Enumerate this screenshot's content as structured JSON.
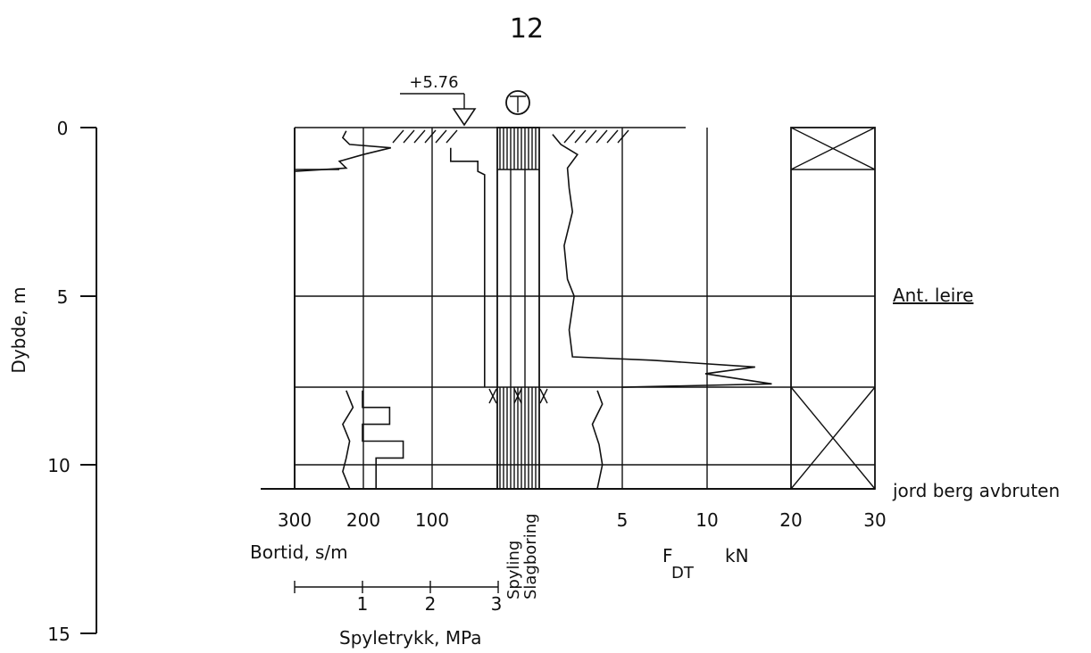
{
  "page_number": "12",
  "chart_data": {
    "type": "line",
    "title": "",
    "elevation_label": "+5.76",
    "depth_axis": {
      "label": "Dybde, m",
      "ticks": [
        0,
        5,
        10,
        15
      ],
      "range": [
        0,
        15
      ]
    },
    "bortid_axis": {
      "label": "Bortid, s/m",
      "ticks": [
        300,
        200,
        100
      ],
      "range": [
        300,
        0
      ]
    },
    "spyletrykk_axis": {
      "label": "Spyletrykk, MPa",
      "ticks": [
        1,
        2,
        3
      ],
      "range": [
        0,
        3
      ]
    },
    "force_axis": {
      "label_main": "F",
      "label_sub": "DT",
      "label_unit": "kN",
      "ticks": [
        5,
        10,
        20,
        30
      ]
    },
    "column_labels": [
      "Spyling",
      "Slagboring"
    ],
    "annotations": [
      {
        "text": "Ant. leire",
        "depth": 5.0
      },
      {
        "text": "jord berg avbruten",
        "depth": 10.7
      }
    ],
    "section_boundaries": [
      1.2,
      7.7,
      10.0,
      10.7
    ],
    "series": [
      {
        "axis": "bortid",
        "points": [
          [
            225,
            0.1
          ],
          [
            230,
            0.3
          ],
          [
            220,
            0.5
          ],
          [
            160,
            0.6
          ],
          [
            200,
            0.8
          ],
          [
            235,
            1.0
          ],
          [
            225,
            1.2
          ],
          [
            300,
            1.3
          ]
        ]
      },
      {
        "axis": "bortid",
        "points": [
          [
            225,
            7.8
          ],
          [
            215,
            8.3
          ],
          [
            230,
            8.8
          ],
          [
            220,
            9.3
          ],
          [
            225,
            9.8
          ],
          [
            230,
            10.2
          ],
          [
            220,
            10.7
          ]
        ]
      },
      {
        "axis": "spyletrykk",
        "points": [
          [
            2.3,
            0.6
          ],
          [
            2.3,
            1.0
          ],
          [
            2.7,
            1.0
          ],
          [
            2.7,
            1.3
          ],
          [
            2.8,
            1.4
          ],
          [
            2.8,
            3.4
          ],
          [
            2.8,
            4.0
          ],
          [
            2.8,
            7.4
          ],
          [
            2.8,
            7.7
          ]
        ]
      },
      {
        "axis": "spyletrykk",
        "points": [
          [
            1.0,
            7.8
          ],
          [
            1.0,
            8.3
          ],
          [
            1.4,
            8.3
          ],
          [
            1.4,
            8.8
          ],
          [
            1.0,
            8.8
          ],
          [
            1.0,
            9.3
          ],
          [
            1.6,
            9.3
          ],
          [
            1.6,
            9.8
          ],
          [
            1.2,
            9.8
          ],
          [
            1.2,
            10.7
          ]
        ]
      },
      {
        "axis": "force",
        "points": [
          [
            0.8,
            0.2
          ],
          [
            1.3,
            0.5
          ],
          [
            2.3,
            0.8
          ],
          [
            1.7,
            1.2
          ],
          [
            1.8,
            1.8
          ],
          [
            2.0,
            2.5
          ],
          [
            1.5,
            3.5
          ],
          [
            1.7,
            4.5
          ],
          [
            2.1,
            5.0
          ],
          [
            1.8,
            6.0
          ],
          [
            2.0,
            6.8
          ],
          [
            6.8,
            6.9
          ],
          [
            13,
            7.1
          ],
          [
            10,
            7.3
          ],
          [
            14,
            7.6
          ],
          [
            5,
            7.7
          ]
        ]
      },
      {
        "axis": "force",
        "points": [
          [
            3.5,
            7.8
          ],
          [
            3.8,
            8.2
          ],
          [
            3.2,
            8.8
          ],
          [
            3.6,
            9.4
          ],
          [
            3.8,
            10.0
          ],
          [
            3.5,
            10.7
          ]
        ]
      }
    ]
  }
}
